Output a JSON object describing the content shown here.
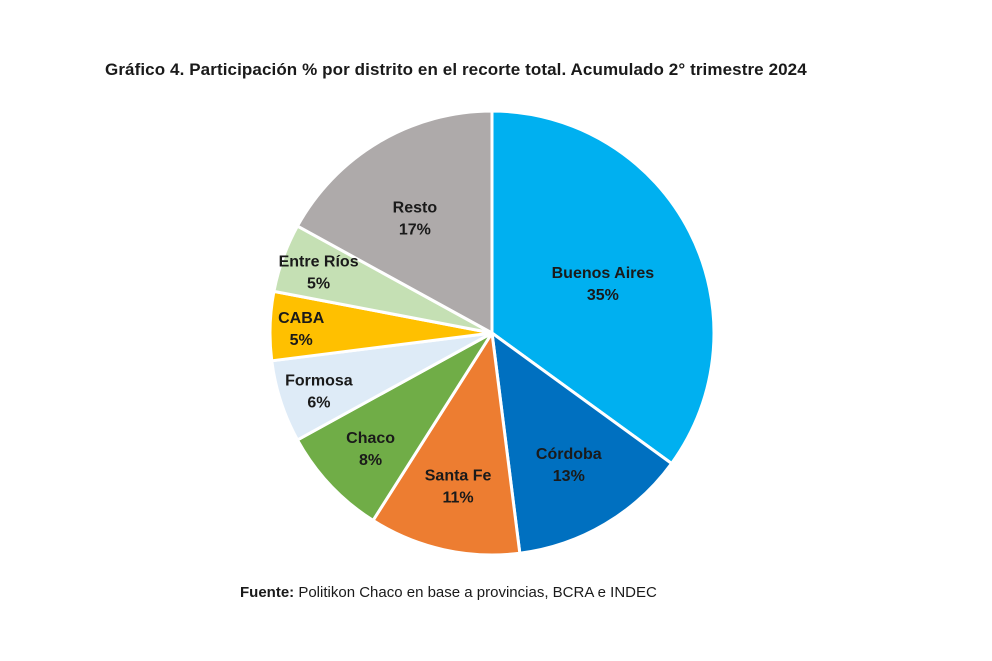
{
  "chart_data": {
    "type": "pie",
    "title": "Gráfico 4. Participación % por distrito en el recorte total. Acumulado 2° trimestre 2024",
    "unit": "%",
    "start": "12 o'clock",
    "direction": "clockwise",
    "slices": [
      {
        "label": "Buenos Aires",
        "value": 35,
        "display": "35%",
        "color": "#00b0f0"
      },
      {
        "label": "Córdoba",
        "value": 13,
        "display": "13%",
        "color": "#0070c0"
      },
      {
        "label": "Santa Fe",
        "value": 11,
        "display": "11%",
        "color": "#ed7d31"
      },
      {
        "label": "Chaco",
        "value": 8,
        "display": "8%",
        "color": "#70ad47"
      },
      {
        "label": "Formosa",
        "value": 6,
        "display": "6%",
        "color": "#deebf7"
      },
      {
        "label": "CABA",
        "value": 5,
        "display": "5%",
        "color": "#ffc000"
      },
      {
        "label": "Entre Ríos",
        "value": 5,
        "display": "5%",
        "color": "#c5e0b4"
      },
      {
        "label": "Resto",
        "value": 17,
        "display": "17%",
        "color": "#aeaaaa"
      }
    ]
  },
  "source": {
    "label": "Fuente:",
    "text": " Politikon Chaco en base a provincias, BCRA e INDEC"
  }
}
